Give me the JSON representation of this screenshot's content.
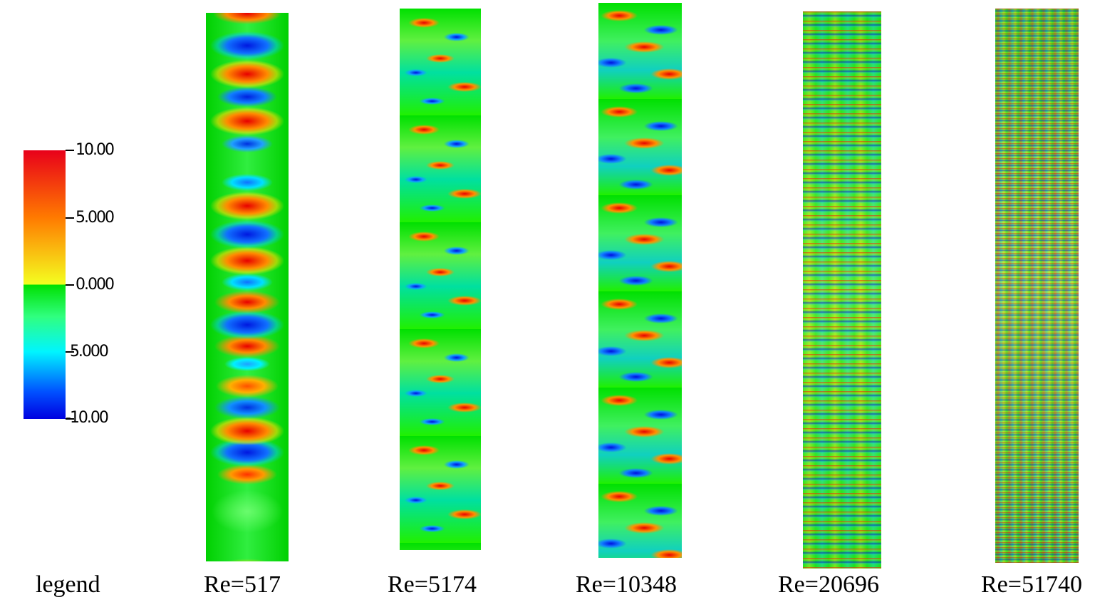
{
  "colorbar": {
    "tick_labels": [
      "10.00",
      "5.000",
      "0.000",
      "-5.000",
      "-10.00"
    ],
    "range": [
      -10,
      10
    ],
    "colormap": [
      "#0000e0",
      "#00f5ff",
      "#00e000",
      "#f4ff20",
      "#e8001a"
    ]
  },
  "captions": {
    "legend": "legend",
    "re1": "Re=517",
    "re2": "Re=5174",
    "re3": "Re=10348",
    "re4": "Re=20696",
    "re5": "Re=51740"
  }
}
